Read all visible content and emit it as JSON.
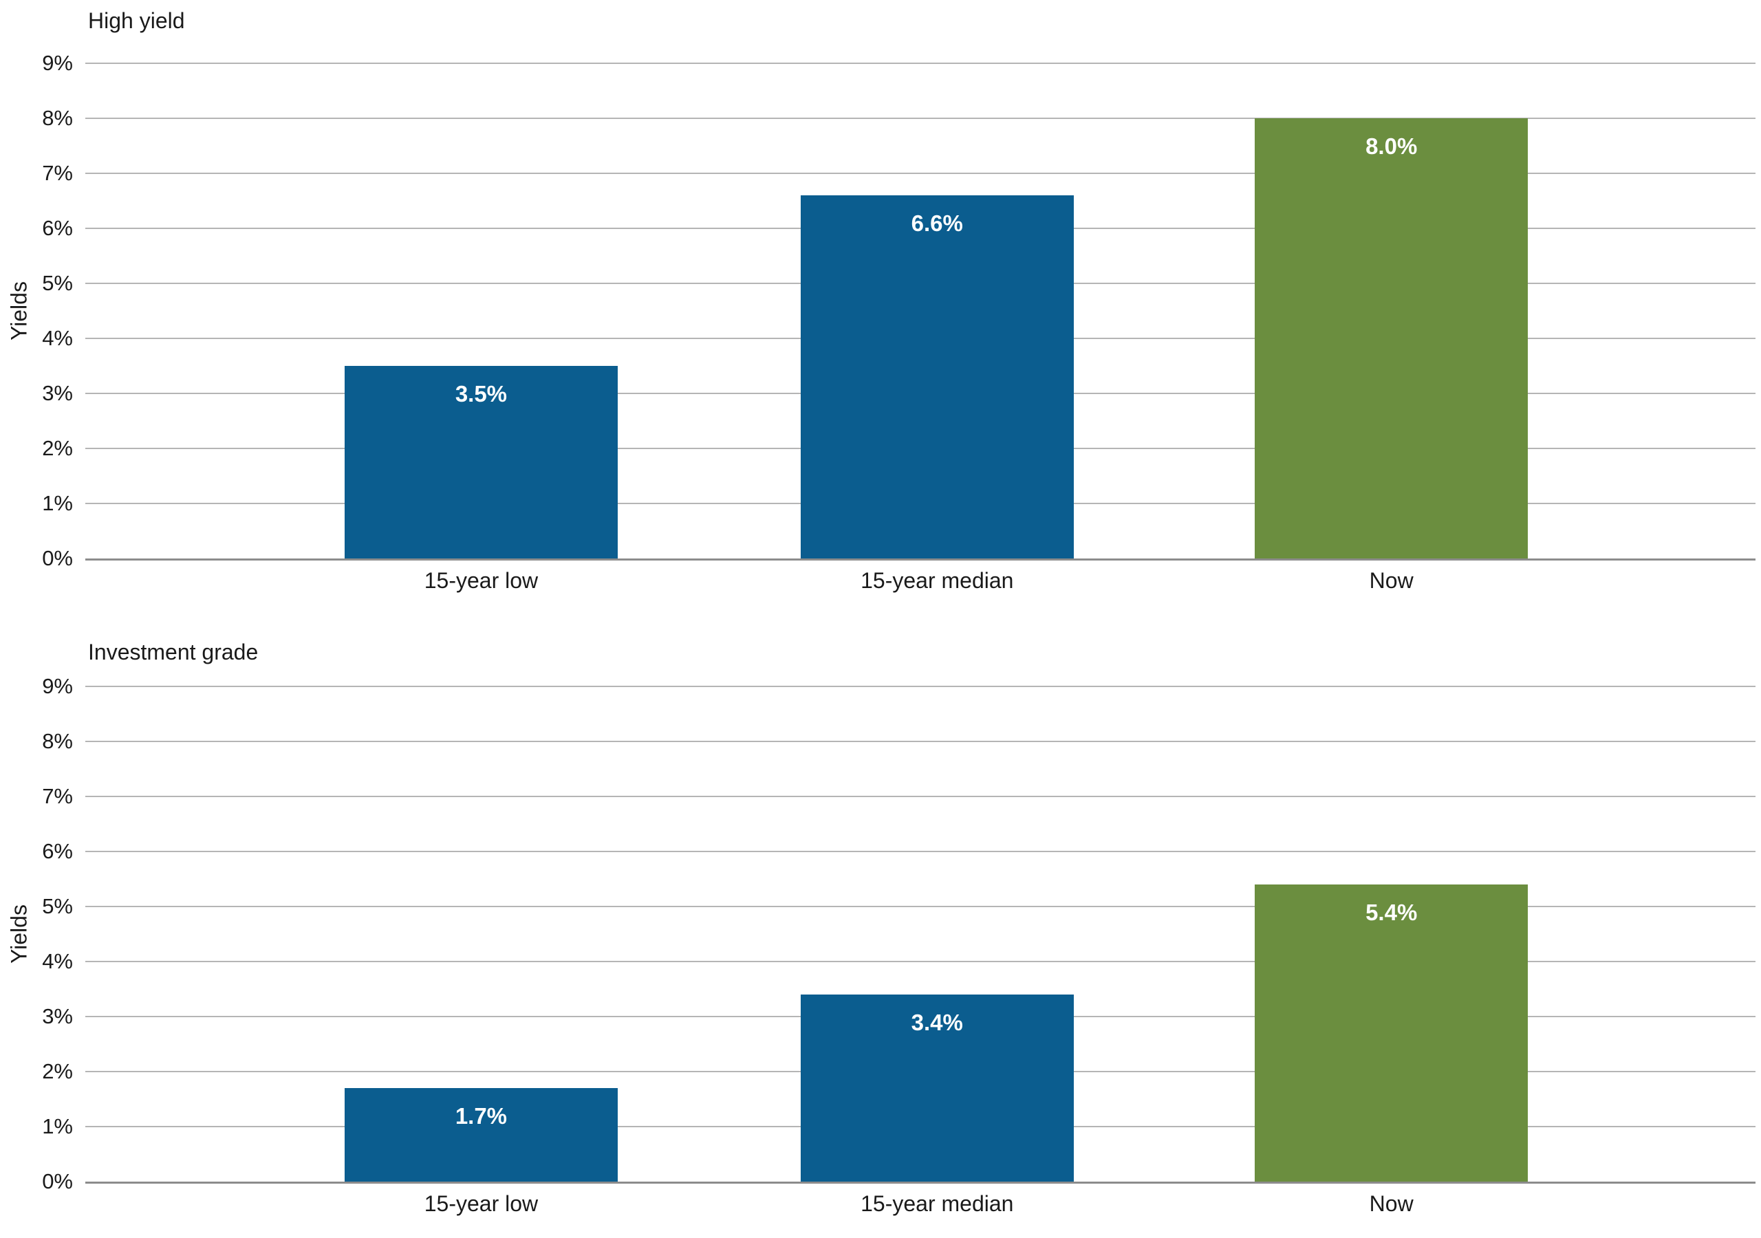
{
  "page": {
    "background": "#ffffff"
  },
  "colors": {
    "bar_blue": "#0b5d8f",
    "bar_green": "#6b8e3f",
    "gridline": "#b5b5b5",
    "baseline": "#8c8c8c",
    "axis_text": "#1a1a1a",
    "value_label_text": "#ffffff"
  },
  "chart_data": [
    {
      "type": "bar",
      "title": "High yield",
      "ylabel": "Yields",
      "categories": [
        "15-year low",
        "15-year median",
        "Now"
      ],
      "values": [
        3.5,
        6.6,
        8.0
      ],
      "value_labels": [
        "3.5%",
        "6.6%",
        "8.0%"
      ],
      "bar_colors": [
        "#0b5d8f",
        "#0b5d8f",
        "#6b8e3f"
      ],
      "ylim": [
        0,
        9
      ],
      "ytick_step": 1,
      "ytick_suffix": "%",
      "grid": true,
      "legend": "none"
    },
    {
      "type": "bar",
      "title": "Investment grade",
      "ylabel": "Yields",
      "categories": [
        "15-year low",
        "15-year median",
        "Now"
      ],
      "values": [
        1.7,
        3.4,
        5.4
      ],
      "value_labels": [
        "1.7%",
        "3.4%",
        "5.4%"
      ],
      "bar_colors": [
        "#0b5d8f",
        "#0b5d8f",
        "#6b8e3f"
      ],
      "ylim": [
        0,
        9
      ],
      "ytick_step": 1,
      "ytick_suffix": "%",
      "grid": true,
      "legend": "none"
    }
  ]
}
